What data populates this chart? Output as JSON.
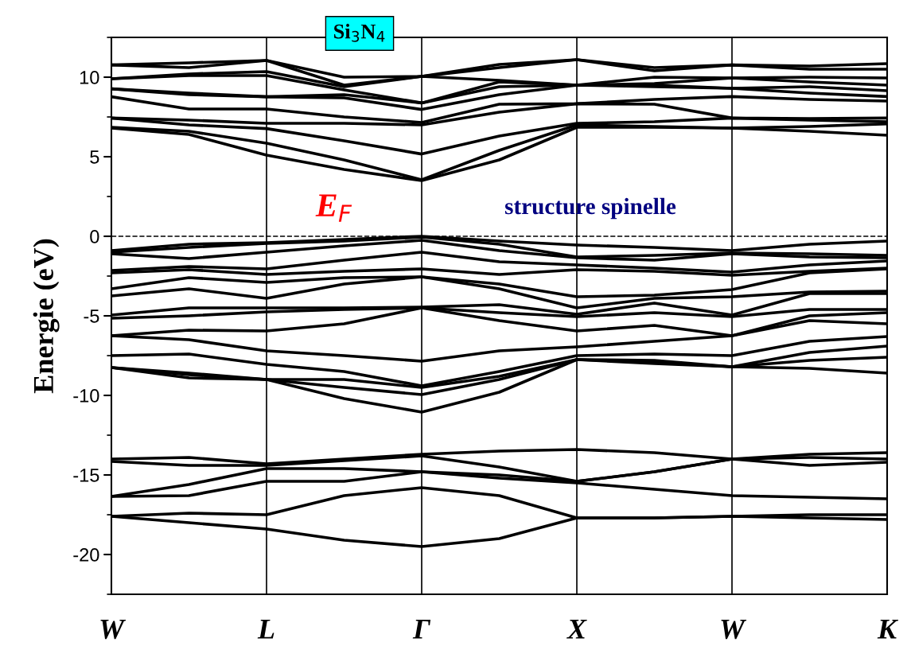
{
  "chart_data": {
    "type": "line",
    "title": "Si$_{3}$N$_{4}$",
    "ylabel": "Energie (eV)",
    "annotations": [
      "E$_{F}$",
      "structure spinelle"
    ],
    "categories": [
      "W",
      null,
      "L",
      null,
      "Γ",
      null,
      "X",
      null,
      "W",
      null,
      "K"
    ],
    "ylim": [
      -22.5,
      12.5
    ],
    "yticks": [
      10,
      5,
      0,
      -5,
      -10,
      -15,
      -20
    ],
    "grid": "x",
    "legend": false,
    "line_style": "solid",
    "marker": "none",
    "ref_lines": [
      {
        "axis": "y",
        "value": 0,
        "color": "#000000",
        "line_style": "dashed"
      }
    ],
    "series": [
      {
        "color": "#000000",
        "values": [
          -17.6,
          -18.0,
          -18.4,
          -19.1,
          -19.5,
          -19.0,
          -17.7,
          -17.7,
          -17.6,
          -17.7,
          -17.8
        ]
      },
      {
        "color": "#000000",
        "values": [
          -17.6,
          -17.4,
          -17.5,
          -16.3,
          -15.8,
          -16.3,
          -17.7,
          -17.7,
          -17.6,
          -17.5,
          -17.5
        ]
      },
      {
        "color": "#000000",
        "values": [
          -16.35,
          -16.3,
          -15.4,
          -15.4,
          -14.8,
          -15.2,
          -15.5,
          -15.9,
          -16.3,
          -16.4,
          -16.5
        ]
      },
      {
        "color": "#000000",
        "values": [
          -16.35,
          -15.6,
          -14.6,
          -14.6,
          -14.8,
          -15.0,
          -15.4,
          -14.8,
          -14.0,
          -14.4,
          -14.2
        ]
      },
      {
        "color": "#000000",
        "values": [
          -14.15,
          -14.4,
          -14.4,
          -14.1,
          -13.8,
          -14.5,
          -15.4,
          -14.8,
          -14.0,
          -13.9,
          -14.0
        ]
      },
      {
        "color": "#000000",
        "values": [
          -14.0,
          -13.9,
          -14.3,
          -14.0,
          -13.7,
          -13.5,
          -13.4,
          -13.6,
          -14.0,
          -13.7,
          -13.6
        ]
      },
      {
        "color": "#000000",
        "values": [
          -8.25,
          -8.7,
          -9.0,
          -10.2,
          -11.05,
          -9.8,
          -7.75,
          -8.0,
          -8.2,
          -8.3,
          -8.6
        ]
      },
      {
        "color": "#000000",
        "values": [
          -8.25,
          -8.9,
          -9.0,
          -9.5,
          -9.95,
          -9.0,
          -7.75,
          -7.9,
          -8.2,
          -7.8,
          -7.6
        ]
      },
      {
        "color": "#000000",
        "values": [
          -8.25,
          -8.6,
          -9.0,
          -9.0,
          -9.5,
          -8.8,
          -7.75,
          -7.8,
          -8.2,
          -7.3,
          -6.9
        ]
      },
      {
        "color": "#000000",
        "values": [
          -7.5,
          -7.4,
          -8.05,
          -8.5,
          -9.4,
          -8.5,
          -7.5,
          -7.4,
          -7.5,
          -6.6,
          -6.3
        ]
      },
      {
        "color": "#000000",
        "values": [
          -6.25,
          -6.5,
          -7.2,
          -7.5,
          -7.85,
          -7.2,
          -6.95,
          -6.6,
          -6.25,
          -5.3,
          -5.5
        ]
      },
      {
        "color": "#000000",
        "values": [
          -6.25,
          -5.9,
          -5.95,
          -5.5,
          -4.5,
          -5.3,
          -5.95,
          -5.6,
          -6.25,
          -5.0,
          -4.8
        ]
      },
      {
        "color": "#000000",
        "values": [
          -5.15,
          -5.0,
          -4.75,
          -4.6,
          -4.5,
          -4.8,
          -5.05,
          -4.8,
          -5.05,
          -4.6,
          -4.6
        ]
      },
      {
        "color": "#000000",
        "values": [
          -4.95,
          -4.5,
          -4.5,
          -4.5,
          -4.45,
          -4.3,
          -4.9,
          -4.2,
          -4.95,
          -3.6,
          -3.6
        ]
      },
      {
        "color": "#000000",
        "values": [
          -3.75,
          -3.3,
          -3.9,
          -3.0,
          -2.55,
          -3.3,
          -4.5,
          -3.9,
          -3.8,
          -3.5,
          -3.45
        ]
      },
      {
        "color": "#000000",
        "values": [
          -3.3,
          -2.6,
          -2.9,
          -2.6,
          -2.55,
          -3.0,
          -3.8,
          -3.7,
          -3.35,
          -2.3,
          -2.05
        ]
      },
      {
        "color": "#000000",
        "values": [
          -2.3,
          -2.1,
          -2.4,
          -2.2,
          -2.05,
          -2.4,
          -2.1,
          -2.2,
          -2.45,
          -2.2,
          -2.0
        ]
      },
      {
        "color": "#000000",
        "values": [
          -2.15,
          -1.9,
          -2.05,
          -1.5,
          -1.0,
          -1.6,
          -1.8,
          -2.0,
          -2.25,
          -1.8,
          -1.55
        ]
      },
      {
        "color": "#000000",
        "values": [
          -1.1,
          -1.4,
          -1.0,
          -0.6,
          -0.25,
          -0.9,
          -1.35,
          -1.5,
          -1.1,
          -1.3,
          -1.35
        ]
      },
      {
        "color": "#000000",
        "values": [
          -1.0,
          -0.7,
          -0.45,
          -0.3,
          -0.05,
          -0.5,
          -1.3,
          -1.2,
          -1.05,
          -1.1,
          -1.2
        ]
      },
      {
        "color": "#000000",
        "values": [
          -0.9,
          -0.5,
          -0.4,
          -0.2,
          0.0,
          -0.3,
          -0.55,
          -0.7,
          -0.9,
          -0.5,
          -0.3
        ]
      },
      {
        "color": "#000000",
        "values": [
          6.8,
          6.4,
          5.1,
          4.2,
          3.5,
          4.8,
          6.85,
          6.85,
          6.8,
          6.6,
          6.35
        ]
      },
      {
        "color": "#000000",
        "values": [
          6.85,
          6.6,
          5.85,
          4.8,
          3.55,
          5.4,
          7.0,
          6.9,
          6.8,
          6.9,
          7.07
        ]
      },
      {
        "color": "#000000",
        "values": [
          7.43,
          7.0,
          6.77,
          6.0,
          5.17,
          6.3,
          7.1,
          7.2,
          7.43,
          7.3,
          7.2
        ]
      },
      {
        "color": "#000000",
        "values": [
          7.43,
          7.3,
          7.1,
          7.1,
          7.0,
          7.8,
          8.33,
          8.3,
          7.43,
          7.4,
          7.43
        ]
      },
      {
        "color": "#000000",
        "values": [
          8.77,
          8.0,
          8.0,
          7.5,
          7.15,
          8.3,
          8.33,
          8.6,
          8.78,
          8.6,
          8.5
        ]
      },
      {
        "color": "#000000",
        "values": [
          9.27,
          8.9,
          8.77,
          8.7,
          7.97,
          8.9,
          9.5,
          9.4,
          9.3,
          9.0,
          8.78
        ]
      },
      {
        "color": "#000000",
        "values": [
          9.27,
          9.0,
          8.77,
          8.9,
          8.38,
          9.4,
          9.5,
          9.5,
          9.3,
          9.4,
          9.15
        ]
      },
      {
        "color": "#000000",
        "values": [
          9.9,
          10.1,
          10.1,
          9.2,
          8.38,
          9.7,
          9.5,
          9.6,
          9.95,
          9.7,
          9.5
        ]
      },
      {
        "color": "#000000",
        "values": [
          9.9,
          10.2,
          10.35,
          9.4,
          10.05,
          9.8,
          9.5,
          10.0,
          9.95,
          10.0,
          9.95
        ]
      },
      {
        "color": "#000000",
        "values": [
          10.77,
          10.6,
          11.05,
          9.5,
          10.05,
          10.6,
          11.1,
          10.4,
          10.77,
          10.5,
          10.5
        ]
      },
      {
        "color": "#000000",
        "values": [
          10.77,
          10.9,
          11.05,
          10.0,
          10.05,
          10.8,
          11.1,
          10.6,
          10.77,
          10.7,
          10.85
        ]
      }
    ]
  }
}
